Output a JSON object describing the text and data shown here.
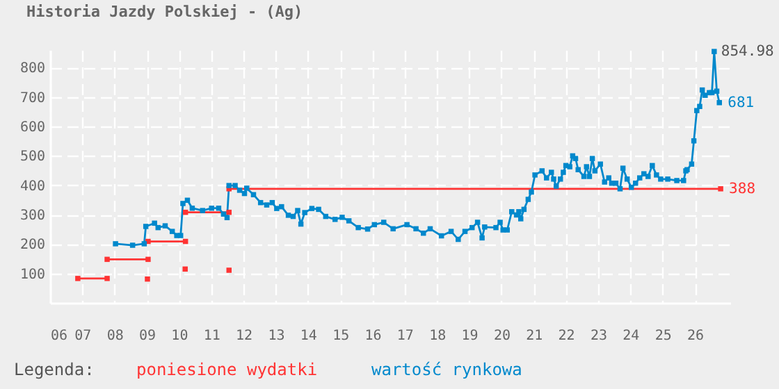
{
  "chart_data": {
    "type": "line",
    "title": "Historia Jazdy Polskiej - (Ag)",
    "legend_title": "Legenda:",
    "legend": "bottom",
    "grid": true,
    "marker": "square",
    "line_style": "solid",
    "xlim": [
      2006,
      2027.1
    ],
    "xticks": [
      {
        "value": 2006,
        "label": "06"
      },
      {
        "value": 2007,
        "label": "07"
      },
      {
        "value": 2008,
        "label": "08"
      },
      {
        "value": 2009,
        "label": "09"
      },
      {
        "value": 2010,
        "label": "10"
      },
      {
        "value": 2011,
        "label": "11"
      },
      {
        "value": 2012,
        "label": "12"
      },
      {
        "value": 2013,
        "label": "13"
      },
      {
        "value": 2014,
        "label": "14"
      },
      {
        "value": 2015,
        "label": "15"
      },
      {
        "value": 2016,
        "label": "16"
      },
      {
        "value": 2017,
        "label": "17"
      },
      {
        "value": 2018,
        "label": "18"
      },
      {
        "value": 2019,
        "label": "19"
      },
      {
        "value": 2020,
        "label": "20"
      },
      {
        "value": 2021,
        "label": "21"
      },
      {
        "value": 2022,
        "label": "22"
      },
      {
        "value": 2023,
        "label": "23"
      },
      {
        "value": 2024,
        "label": "24"
      },
      {
        "value": 2025,
        "label": "25"
      },
      {
        "value": 2026,
        "label": "26"
      }
    ],
    "ylim": [
      0,
      860
    ],
    "yticks": [
      100,
      200,
      300,
      400,
      500,
      600,
      700,
      800
    ],
    "annotations": [
      {
        "text": "854.98",
        "x": 2026.6,
        "y": 854.98
      }
    ],
    "series": [
      {
        "name": "poniesione wydatki",
        "color": "#ff3333",
        "x": [
          2006.86,
          2007.77,
          null,
          2007.77,
          2009.04,
          null,
          2009.02,
          null,
          2009.04,
          2010.2,
          null,
          2010.19,
          null,
          2010.2,
          2011.55,
          null,
          2011.55,
          null,
          2011.55,
          2026.8
        ],
        "values": [
          83,
          83,
          null,
          148,
          148,
          null,
          81,
          null,
          209,
          209,
          null,
          115,
          null,
          308,
          308,
          null,
          111,
          null,
          388,
          388
        ],
        "value_labels": [
          null,
          null,
          null,
          null,
          null,
          null,
          null,
          null,
          null,
          null,
          null,
          null,
          null,
          null,
          null,
          null,
          null,
          null,
          null,
          "388"
        ]
      },
      {
        "name": "wartość rynkowa",
        "color": "#0088cc",
        "x": [
          2008.03,
          2008.56,
          2008.92,
          2008.97,
          2009.24,
          2009.35,
          2009.57,
          2009.79,
          2009.93,
          2010.05,
          2010.12,
          2010.26,
          2010.41,
          2010.73,
          2011.01,
          2011.23,
          2011.38,
          2011.49,
          2011.55,
          2011.74,
          2011.88,
          2012.03,
          2012.1,
          2012.31,
          2012.53,
          2012.72,
          2012.89,
          2013.03,
          2013.18,
          2013.39,
          2013.54,
          2013.68,
          2013.78,
          2013.9,
          2014.12,
          2014.33,
          2014.55,
          2014.84,
          2015.06,
          2015.27,
          2015.56,
          2015.85,
          2016.06,
          2016.35,
          2016.64,
          2017.07,
          2017.35,
          2017.58,
          2017.79,
          2018.14,
          2018.44,
          2018.66,
          2018.87,
          2019.09,
          2019.26,
          2019.4,
          2019.48,
          2019.83,
          2019.96,
          2020.05,
          2020.18,
          2020.32,
          2020.47,
          2020.54,
          2020.6,
          2020.7,
          2020.83,
          2020.93,
          2021.04,
          2021.26,
          2021.4,
          2021.55,
          2021.62,
          2021.7,
          2021.83,
          2021.92,
          2022.0,
          2022.12,
          2022.21,
          2022.3,
          2022.38,
          2022.56,
          2022.64,
          2022.73,
          2022.82,
          2022.9,
          2023.07,
          2023.2,
          2023.33,
          2023.42,
          2023.55,
          2023.68,
          2023.77,
          2023.9,
          2024.03,
          2024.16,
          2024.29,
          2024.42,
          2024.55,
          2024.68,
          2024.81,
          2024.94,
          2025.16,
          2025.44,
          2025.65,
          2025.72,
          2025.76,
          2025.9,
          2025.97,
          2026.06,
          2026.15,
          2026.23,
          2026.32,
          2026.45,
          2026.53,
          2026.6,
          2026.68,
          2026.76
        ],
        "values": [
          201,
          196,
          201,
          260,
          271,
          256,
          262,
          243,
          229,
          229,
          338,
          349,
          322,
          314,
          322,
          322,
          302,
          290,
          399,
          399,
          383,
          372,
          390,
          368,
          341,
          333,
          341,
          321,
          327,
          298,
          294,
          314,
          268,
          307,
          321,
          318,
          294,
          284,
          291,
          279,
          256,
          251,
          266,
          274,
          252,
          266,
          252,
          237,
          252,
          228,
          243,
          216,
          243,
          256,
          274,
          221,
          258,
          256,
          274,
          248,
          248,
          310,
          299,
          310,
          286,
          318,
          352,
          377,
          435,
          449,
          425,
          444,
          421,
          397,
          421,
          444,
          467,
          463,
          500,
          491,
          453,
          430,
          463,
          430,
          491,
          449,
          472,
          411,
          425,
          407,
          407,
          388,
          458,
          421,
          393,
          407,
          425,
          439,
          430,
          467,
          435,
          421,
          421,
          416,
          416,
          449,
          453,
          472,
          551,
          654,
          668,
          724,
          706,
          715,
          715,
          854.98,
          720,
          681
        ],
        "value_labels": [
          null,
          null,
          null,
          null,
          null,
          null,
          null,
          null,
          null,
          null,
          null,
          null,
          null,
          null,
          null,
          null,
          null,
          null,
          null,
          null,
          null,
          null,
          null,
          null,
          null,
          null,
          null,
          null,
          null,
          null,
          null,
          null,
          null,
          null,
          null,
          null,
          null,
          null,
          null,
          null,
          null,
          null,
          null,
          null,
          null,
          null,
          null,
          null,
          null,
          null,
          null,
          null,
          null,
          null,
          null,
          null,
          null,
          null,
          null,
          null,
          null,
          null,
          null,
          null,
          null,
          null,
          null,
          null,
          null,
          null,
          null,
          null,
          null,
          null,
          null,
          null,
          null,
          null,
          null,
          null,
          null,
          null,
          null,
          null,
          null,
          null,
          null,
          null,
          null,
          null,
          null,
          null,
          null,
          null,
          null,
          null,
          null,
          null,
          null,
          null,
          null,
          null,
          null,
          null,
          null,
          null,
          null,
          null,
          null,
          null,
          null,
          null,
          null,
          null,
          null,
          null,
          null,
          "681"
        ]
      }
    ]
  }
}
